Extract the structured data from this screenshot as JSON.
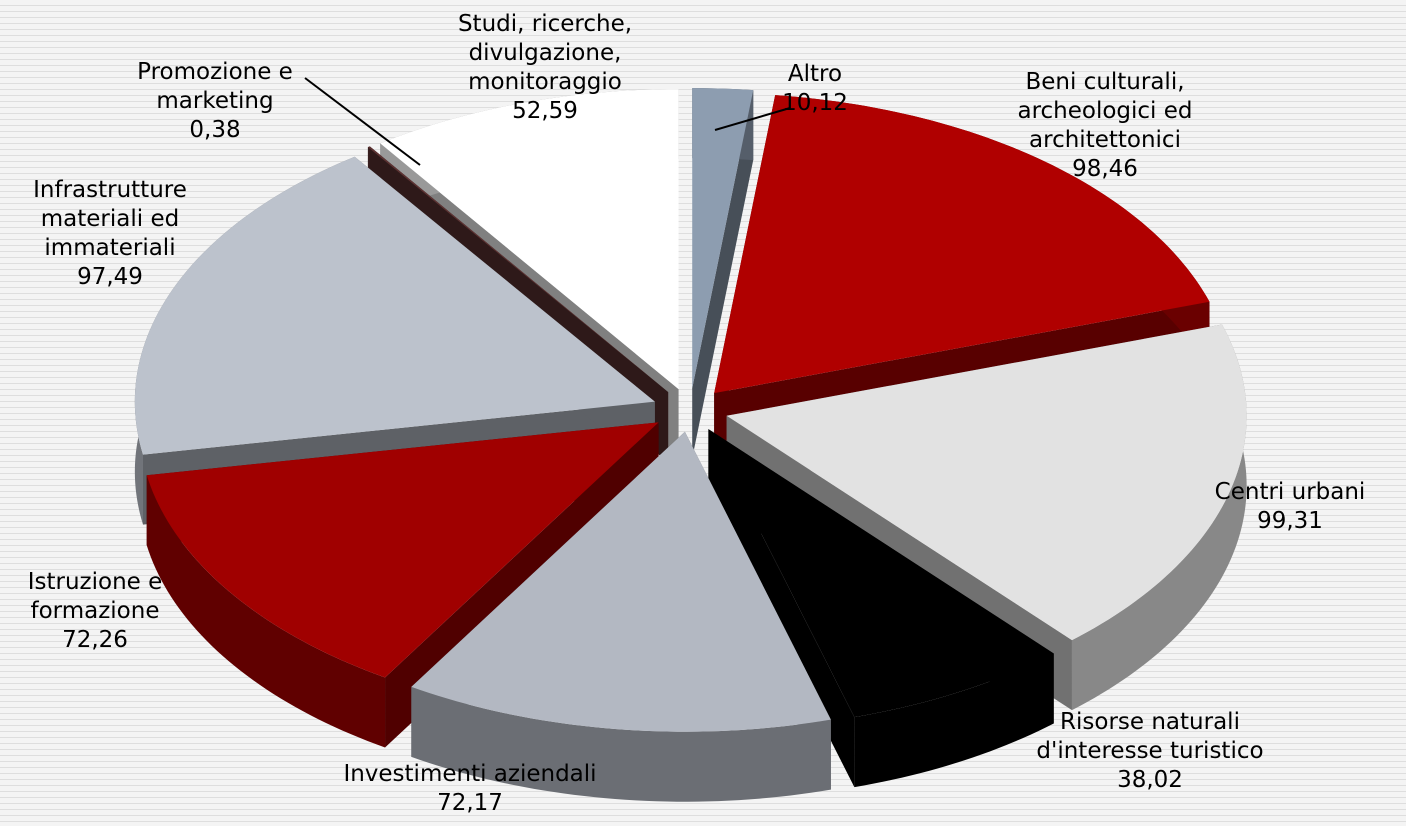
{
  "chart_data": {
    "type": "pie",
    "categories": [
      "Altro",
      "Beni culturali, archeologici ed architettonici",
      "Centri urbani",
      "Risorse naturali d'interesse turistico",
      "Investimenti aziendali",
      "Istruzione e formazione",
      "Infrastrutture materiali ed immateriali",
      "Promozione e marketing",
      "Studi, ricerche, divulgazione, monitoraggio"
    ],
    "values": [
      10.12,
      98.46,
      99.31,
      38.02,
      72.17,
      72.26,
      97.49,
      0.38,
      52.59
    ],
    "value_labels": [
      "10,12",
      "98,46",
      "99,31",
      "38,02",
      "72,17",
      "72,26",
      "97,49",
      "0,38",
      "52,59"
    ],
    "colors": [
      "#8d9db0",
      "#b00000",
      "#e2e2e2",
      "#000000",
      "#b3b8c2",
      "#a00000",
      "#bcc2cc",
      "#5c3232",
      "#ffffff"
    ]
  }
}
